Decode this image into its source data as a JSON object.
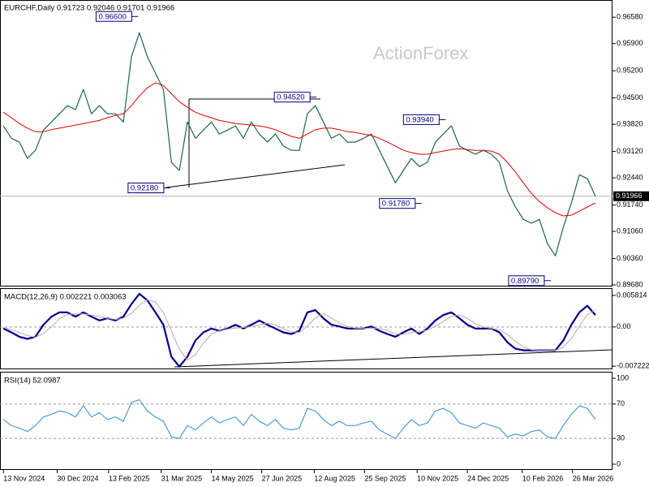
{
  "chart_data": {
    "type": "line",
    "title": "EURCHF,Daily 0.91723 0.92046 0.91701 0.91966",
    "watermark": "ActionForex",
    "y2_label": "MACD(12,26,9) 0.002221 0.003063",
    "y3_label": "RSI(14) 52.0987",
    "x": [
      "2024-11-13",
      "2024-11-20",
      "2024-11-27",
      "2024-12-04",
      "2024-12-11",
      "2024-12-18",
      "2024-12-25",
      "2025-01-01",
      "2025-01-08",
      "2025-01-15",
      "2025-01-22",
      "2025-01-29",
      "2025-02-05",
      "2025-02-12",
      "2025-02-19",
      "2025-02-26",
      "2025-03-05",
      "2025-03-12",
      "2025-03-19",
      "2025-03-26",
      "2025-04-02",
      "2025-04-09",
      "2025-04-16",
      "2025-04-23",
      "2025-04-30",
      "2025-05-07",
      "2025-05-14",
      "2025-05-21",
      "2025-05-28",
      "2025-06-04",
      "2025-06-11",
      "2025-06-18",
      "2025-06-25",
      "2025-07-02",
      "2025-07-09",
      "2025-07-16",
      "2025-07-23",
      "2025-07-30",
      "2025-08-06",
      "2025-08-13",
      "2025-08-20",
      "2025-08-27",
      "2025-09-03",
      "2025-09-10",
      "2025-09-17",
      "2025-09-24",
      "2025-10-01",
      "2025-10-08",
      "2025-10-15",
      "2025-10-22",
      "2025-10-29",
      "2025-11-05",
      "2025-11-12",
      "2025-11-19",
      "2025-11-26",
      "2025-12-03",
      "2025-12-10",
      "2025-12-17",
      "2025-12-24",
      "2025-12-31",
      "2026-01-07",
      "2026-01-14",
      "2026-01-21",
      "2026-01-28",
      "2026-02-04",
      "2026-02-11",
      "2026-02-18",
      "2026-02-25",
      "2026-03-04",
      "2026-03-11",
      "2026-03-18",
      "2026-03-25",
      "2026-04-01",
      "2026-04-08",
      "2026-04-15"
    ],
    "xlim": [
      "2024-11-10",
      "2026-04-30"
    ],
    "xticks": [
      {
        "value": "2024-11-13",
        "label": "13 Nov 2024"
      },
      {
        "value": "2024-12-30",
        "label": "30 Dec 2024"
      },
      {
        "value": "2025-02-13",
        "label": "13 Feb 2025"
      },
      {
        "value": "2025-03-31",
        "label": "31 Mar 2025"
      },
      {
        "value": "2025-05-14",
        "label": "14 May 2025"
      },
      {
        "value": "2025-06-27",
        "label": "27 Jun 2025"
      },
      {
        "value": "2025-08-12",
        "label": "12 Aug 2025"
      },
      {
        "value": "2025-09-25",
        "label": "25 Sep 2025"
      },
      {
        "value": "2025-11-10",
        "label": "10 Nov 2025"
      },
      {
        "value": "2025-12-24",
        "label": "24 Dec 2025"
      },
      {
        "value": "2026-02-10",
        "label": "10 Feb 2026"
      },
      {
        "value": "2026-03-26",
        "label": "26 Mar 2026"
      }
    ],
    "ylim": [
      0.8966,
      0.9694
    ],
    "yticks": [
      {
        "value": 0.9658,
        "label": "0.96580"
      },
      {
        "value": 0.959,
        "label": "0.95900"
      },
      {
        "value": 0.952,
        "label": "0.95200"
      },
      {
        "value": 0.945,
        "label": "0.94500"
      },
      {
        "value": 0.9382,
        "label": "0.93820"
      },
      {
        "value": 0.9312,
        "label": "0.93120"
      },
      {
        "value": 0.9244,
        "label": "0.92440"
      },
      {
        "value": 0.9174,
        "label": "0.91740"
      },
      {
        "value": 0.9106,
        "label": "0.91060"
      },
      {
        "value": 0.9036,
        "label": "0.90360"
      },
      {
        "value": 0.8968,
        "label": "0.89680"
      }
    ],
    "y2lim": [
      -0.0078,
      0.007
    ],
    "y2ticks": [
      0.005814,
      {
        "value": 0,
        "label": "0.00"
      },
      -0.007222
    ],
    "y3lim": [
      -5.7,
      106.6
    ],
    "y3ticks": [
      100,
      70,
      30,
      0
    ],
    "series": [
      {
        "color": "#1b6654",
        "width": 1.2,
        "axis": "y",
        "values": [
          0.9378,
          0.9346,
          0.9336,
          0.9294,
          0.9315,
          0.9367,
          0.9388,
          0.9409,
          0.943,
          0.942,
          0.9472,
          0.9409,
          0.943,
          0.9409,
          0.9409,
          0.9388,
          0.9556,
          0.9618,
          0.9556,
          0.9514,
          0.9472,
          0.9284,
          0.9263,
          0.9388,
          0.9346,
          0.9367,
          0.9388,
          0.9357,
          0.9367,
          0.9378,
          0.9346,
          0.9388,
          0.9357,
          0.9336,
          0.9357,
          0.9326,
          0.9315,
          0.9315,
          0.9409,
          0.943,
          0.9388,
          0.9346,
          0.9357,
          0.9336,
          0.9336,
          0.9346,
          0.9357,
          0.9315,
          0.9273,
          0.9231,
          0.9263,
          0.9294,
          0.9273,
          0.9284,
          0.9336,
          0.9357,
          0.9378,
          0.9326,
          0.9315,
          0.9305,
          0.9315,
          0.9305,
          0.9284,
          0.9211,
          0.9169,
          0.9137,
          0.9127,
          0.9137,
          0.9075,
          0.9043,
          0.9117,
          0.9179,
          0.9252,
          0.9242,
          0.9197
        ]
      },
      {
        "color": "#e00000",
        "width": 1,
        "axis": "y",
        "values": [
          0.9413,
          0.9399,
          0.9384,
          0.9372,
          0.9363,
          0.9363,
          0.9368,
          0.9372,
          0.9376,
          0.938,
          0.9384,
          0.9388,
          0.9392,
          0.9399,
          0.9405,
          0.9409,
          0.943,
          0.9455,
          0.9476,
          0.9489,
          0.9482,
          0.9461,
          0.944,
          0.9426,
          0.9413,
          0.9405,
          0.9399,
          0.9392,
          0.9388,
          0.9384,
          0.9382,
          0.938,
          0.9378,
          0.9374,
          0.9368,
          0.9359,
          0.9351,
          0.9346,
          0.9357,
          0.9368,
          0.9372,
          0.9372,
          0.9368,
          0.9363,
          0.9361,
          0.9357,
          0.9353,
          0.9346,
          0.9336,
          0.9326,
          0.9315,
          0.9309,
          0.9305,
          0.9305,
          0.9309,
          0.9313,
          0.9317,
          0.9319,
          0.9317,
          0.9315,
          0.9315,
          0.9313,
          0.9305,
          0.9284,
          0.9259,
          0.9231,
          0.9204,
          0.9183,
          0.9167,
          0.9154,
          0.9146,
          0.9148,
          0.9158,
          0.9169,
          0.9179
        ]
      },
      {
        "color": "#00008b",
        "width": 2.2,
        "axis": "y2",
        "values": [
          -0.0003,
          -0.001,
          -0.0018,
          -0.0022,
          -0.0018,
          0.0004,
          0.0019,
          0.0027,
          0.0027,
          0.0019,
          0.0027,
          0.0019,
          0.0012,
          0.0016,
          0.0012,
          0.0019,
          0.0042,
          0.0061,
          0.0049,
          0.0027,
          0.0004,
          -0.0055,
          -0.0073,
          -0.0055,
          -0.0025,
          -0.001,
          -0.0003,
          -0.0007,
          -0.0003,
          0.0004,
          -0.0003,
          0.0004,
          0.0012,
          0.0004,
          -0.0003,
          -0.001,
          -0.0013,
          -0.0007,
          0.0027,
          0.0031,
          0.0016,
          0.0004,
          0.0001,
          -0.0003,
          -0.0003,
          -0.0003,
          0.0001,
          -0.0007,
          -0.0013,
          -0.0018,
          -0.001,
          -0.0003,
          -0.0013,
          -0.0003,
          0.0012,
          0.0022,
          0.0027,
          0.0016,
          0.0004,
          -0.0003,
          -0.0003,
          -0.0003,
          -0.001,
          -0.0028,
          -0.004,
          -0.0043,
          -0.0043,
          -0.0043,
          -0.0043,
          -0.0043,
          -0.0025,
          0.0004,
          0.0027,
          0.0039,
          0.0022
        ]
      },
      {
        "color": "#c9a6a6",
        "width": 1,
        "axis": "y2",
        "values": [
          -0.0001,
          -0.0005,
          -0.001,
          -0.0016,
          -0.0019,
          -0.0012,
          0.0,
          0.0015,
          0.0023,
          0.0024,
          0.0024,
          0.0022,
          0.0019,
          0.0016,
          0.0014,
          0.0016,
          0.0025,
          0.004,
          0.005,
          0.0046,
          0.0027,
          -0.0008,
          -0.0041,
          -0.0061,
          -0.0051,
          -0.003,
          -0.0013,
          -0.0007,
          -0.0004,
          -0.0002,
          -0.0001,
          0.0001,
          0.0004,
          0.0007,
          0.0004,
          -0.0003,
          -0.0009,
          -0.001,
          0.0002,
          0.0017,
          0.0025,
          0.0017,
          0.0007,
          0.0001,
          -0.0002,
          -0.0003,
          -0.0002,
          -0.0003,
          -0.0006,
          -0.0013,
          -0.0014,
          -0.001,
          -0.0009,
          -0.0006,
          0.0002,
          0.001,
          0.002,
          0.0022,
          0.0016,
          0.0006,
          0.0,
          -0.0003,
          -0.0005,
          -0.0014,
          -0.0026,
          -0.0037,
          -0.0042,
          -0.0043,
          -0.0043,
          -0.0043,
          -0.0037,
          -0.0021,
          0.0002,
          0.0023,
          0.0031
        ]
      },
      {
        "color": "#2f8bd6",
        "width": 1,
        "axis": "y3",
        "values": [
          52,
          45,
          42,
          38,
          45,
          55,
          58,
          62,
          60,
          55,
          68,
          55,
          60,
          52,
          55,
          50,
          72,
          75,
          62,
          55,
          50,
          32,
          30,
          45,
          40,
          48,
          55,
          48,
          52,
          55,
          45,
          58,
          50,
          45,
          52,
          42,
          40,
          42,
          65,
          62,
          52,
          45,
          50,
          45,
          45,
          48,
          50,
          40,
          35,
          30,
          42,
          52,
          45,
          48,
          62,
          65,
          60,
          48,
          45,
          42,
          48,
          45,
          42,
          32,
          35,
          33,
          38,
          40,
          32,
          30,
          45,
          58,
          68,
          65,
          52
        ]
      }
    ],
    "annotations": [
      {
        "x": "2025-03-11",
        "value": 0.966,
        "label": "0.96600"
      },
      {
        "x": "2025-08-14",
        "value": 0.9452,
        "label": "0.94520"
      },
      {
        "x": "2025-12-05",
        "value": 0.9394,
        "label": "0.93940"
      },
      {
        "x": "2025-04-08",
        "value": 0.9218,
        "label": "0.92180"
      },
      {
        "x": "2025-11-14",
        "value": 0.9178,
        "label": "0.91780"
      },
      {
        "x": "2026-03-07",
        "value": 0.8979,
        "label": "0.89790"
      }
    ],
    "last_price": {
      "value": 0.91966,
      "label": "0.91966"
    }
  }
}
